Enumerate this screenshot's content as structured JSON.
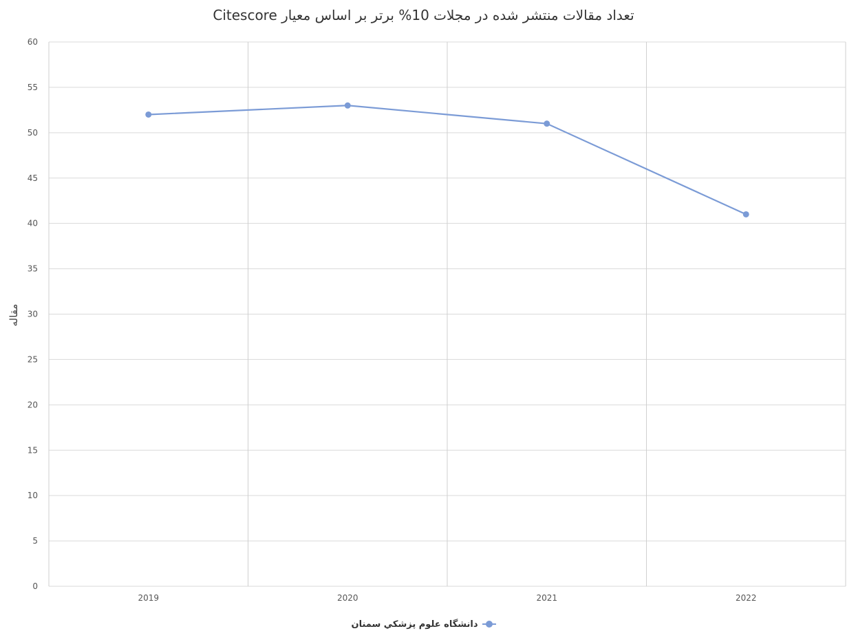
{
  "chart_data": {
    "type": "line",
    "title": "تعداد مقالات منتشر شده در مجلات 10% برتر بر اساس معیار Citescore",
    "xlabel": "",
    "ylabel": "مقاله",
    "categories": [
      "2019",
      "2020",
      "2021",
      "2022"
    ],
    "series": [
      {
        "name": "دانشگاه علوم پزشکي سمنان",
        "values": [
          52,
          53,
          51,
          41
        ]
      }
    ],
    "ylim": [
      0,
      60
    ],
    "yticks": [
      0,
      5,
      10,
      15,
      20,
      25,
      30,
      35,
      40,
      45,
      50,
      55,
      60
    ],
    "grid": true,
    "legend_position": "bottom-center",
    "line_color": "#7b9bd6"
  }
}
